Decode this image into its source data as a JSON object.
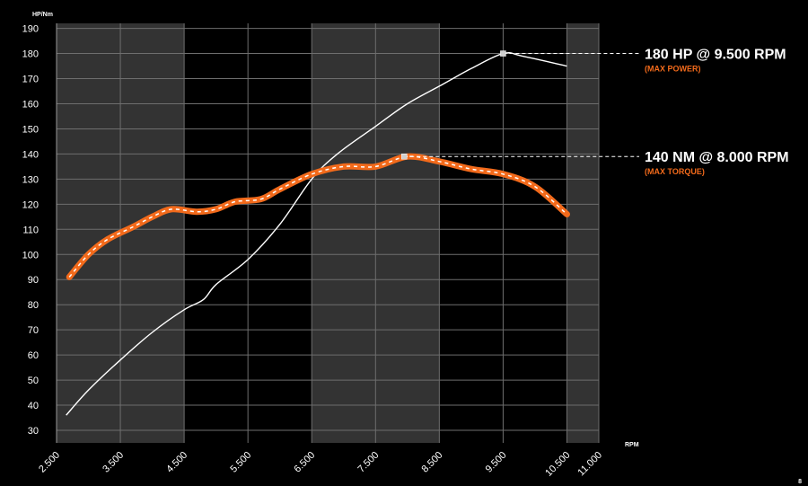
{
  "chart_data": {
    "type": "line",
    "ylabel": "HP/Nm",
    "xlabel": "RPM",
    "xlim": [
      2500,
      11000
    ],
    "ylim": [
      25,
      192
    ],
    "x_tick_labels": [
      "2.500",
      "3.500",
      "4.500",
      "5.500",
      "6.500",
      "7.500",
      "8.500",
      "9.500",
      "10.500",
      "11.000"
    ],
    "x_tick_values": [
      2500,
      3500,
      4500,
      5500,
      6500,
      7500,
      8500,
      9500,
      10500,
      11000
    ],
    "y_ticks": [
      30,
      40,
      50,
      60,
      70,
      80,
      90,
      100,
      110,
      120,
      130,
      140,
      150,
      160,
      170,
      180,
      190
    ],
    "band_colors": [
      "#333333",
      "#000000"
    ],
    "grid": true,
    "series": [
      {
        "color": "#ffffff",
        "style": "thin-line",
        "points": [
          [
            2650,
            36
          ],
          [
            3000,
            46
          ],
          [
            3500,
            58
          ],
          [
            4000,
            69
          ],
          [
            4500,
            78
          ],
          [
            4800,
            82
          ],
          [
            5000,
            88
          ],
          [
            5500,
            98
          ],
          [
            6000,
            112
          ],
          [
            6500,
            130
          ],
          [
            6900,
            140
          ],
          [
            7500,
            151
          ],
          [
            8000,
            160
          ],
          [
            8500,
            167
          ],
          [
            9000,
            174
          ],
          [
            9500,
            180
          ],
          [
            9800,
            179
          ],
          [
            10500,
            175
          ]
        ]
      },
      {
        "color": "#f26a1b",
        "dash_color": "#ffffff",
        "style": "thick-dashed",
        "points": [
          [
            2700,
            91
          ],
          [
            3000,
            100
          ],
          [
            3300,
            106
          ],
          [
            3700,
            111
          ],
          [
            4000,
            115
          ],
          [
            4300,
            118
          ],
          [
            4700,
            117
          ],
          [
            5000,
            118
          ],
          [
            5300,
            121
          ],
          [
            5700,
            122
          ],
          [
            6000,
            126
          ],
          [
            6500,
            132
          ],
          [
            7000,
            135
          ],
          [
            7500,
            135
          ],
          [
            8000,
            139
          ],
          [
            8500,
            137
          ],
          [
            9000,
            134
          ],
          [
            9500,
            132
          ],
          [
            10000,
            127
          ],
          [
            10500,
            116
          ]
        ]
      }
    ],
    "annotations": [
      {
        "id": "power",
        "label": "180 HP @ 9.500 RPM",
        "sublabel": "(MAX POWER)",
        "x": 9500,
        "y": 180
      },
      {
        "id": "torque",
        "label": "140 NM @ 8.000 RPM",
        "sublabel": "(MAX TORQUE)",
        "x": 7950,
        "y": 139
      }
    ],
    "corner_mark": "8"
  }
}
